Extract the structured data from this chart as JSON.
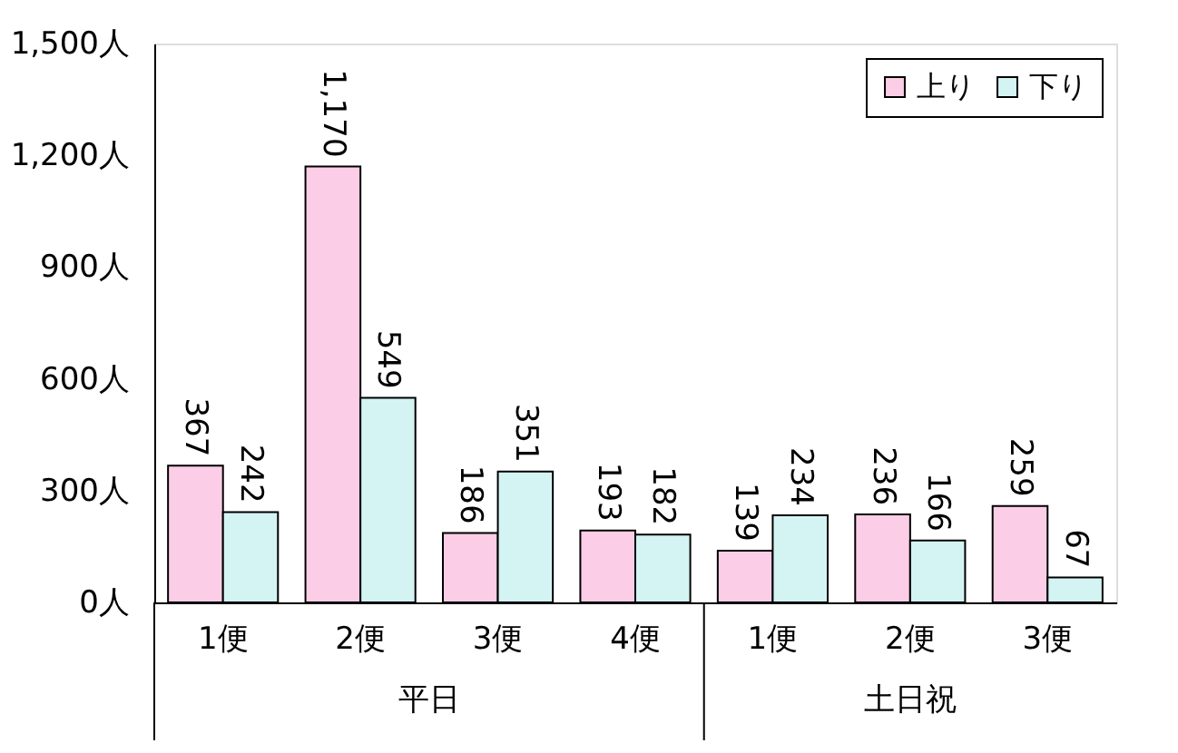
{
  "chart_data": {
    "type": "bar",
    "categories": [
      "1便",
      "2便",
      "3便",
      "4便",
      "1便",
      "2便",
      "3便"
    ],
    "series": [
      {
        "name": "上り",
        "color": "#fbcde6",
        "values": [
          367,
          1170,
          186,
          193,
          139,
          236,
          259
        ],
        "value_labels": [
          "367",
          "1,170",
          "186",
          "193",
          "139",
          "236",
          "259"
        ]
      },
      {
        "name": "下り",
        "color": "#d4f4f4",
        "values": [
          242,
          549,
          351,
          182,
          234,
          166,
          67
        ],
        "value_labels": [
          "242",
          "549",
          "351",
          "182",
          "234",
          "166",
          "67"
        ]
      }
    ],
    "ylim": [
      0,
      1500
    ],
    "yticks": [
      {
        "value": 0,
        "label": "0人"
      },
      {
        "value": 300,
        "label": "300人"
      },
      {
        "value": 600,
        "label": "600人"
      },
      {
        "value": 900,
        "label": "900人"
      },
      {
        "value": 1200,
        "label": "1,200人"
      },
      {
        "value": 1500,
        "label": "1,500人"
      }
    ],
    "annotations": [
      "平日",
      "土日祝"
    ],
    "legend": "top right",
    "grid": false
  }
}
